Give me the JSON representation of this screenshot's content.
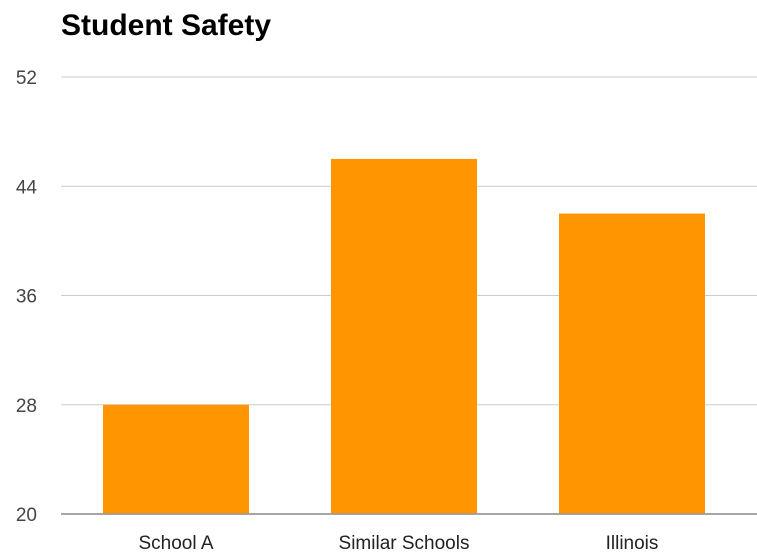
{
  "chart_data": {
    "type": "bar",
    "title": "Student Safety",
    "xlabel": "",
    "ylabel": "",
    "categories": [
      "School A",
      "Similar Schools",
      "Illinois"
    ],
    "values": [
      28,
      46,
      42
    ],
    "ylim": [
      20,
      52
    ],
    "yticks": [
      "20",
      "28",
      "36",
      "44",
      "52"
    ],
    "grid": true,
    "legend": "none",
    "bar_color": "#ff9500",
    "grid_color": "#cccccc",
    "baseline_color": "#999999"
  }
}
